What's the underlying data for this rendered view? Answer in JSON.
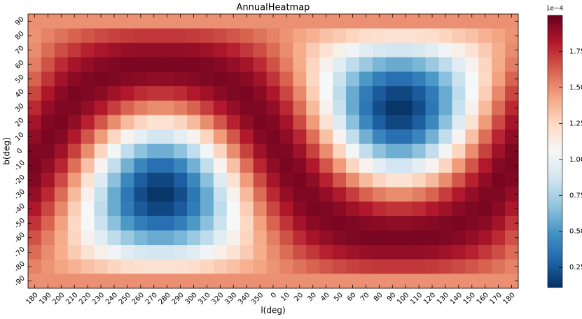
{
  "chart_data": {
    "type": "heatmap",
    "title": "AnnualHeatmap",
    "x_label": "l(deg)",
    "y_label": "b(deg)",
    "categories": [
      "180",
      "190",
      "200",
      "210",
      "220",
      "230",
      "240",
      "250",
      "260",
      "270",
      "280",
      "290",
      "300",
      "310",
      "320",
      "330",
      "340",
      "350",
      "0",
      "10",
      "20",
      "30",
      "40",
      "50",
      "60",
      "70",
      "80",
      "90",
      "100",
      "110",
      "120",
      "130",
      "140",
      "150",
      "160",
      "170",
      "180"
    ],
    "y_categories": [
      "90",
      "80",
      "70",
      "60",
      "50",
      "40",
      "30",
      "20",
      "10",
      "0",
      "-10",
      "-20",
      "-30",
      "-40",
      "-50",
      "-60",
      "-70",
      "-80",
      "-90"
    ],
    "values": [
      [
        1.49,
        1.49,
        1.49,
        1.49,
        1.49,
        1.49,
        1.49,
        1.49,
        1.49,
        1.49,
        1.49,
        1.49,
        1.49,
        1.49,
        1.49,
        1.49,
        1.49,
        1.49,
        1.49,
        1.49,
        1.49,
        1.49,
        1.49,
        1.49,
        1.49,
        1.49,
        1.49,
        1.49,
        1.49,
        1.49,
        1.49,
        1.49,
        1.49,
        1.49,
        1.49,
        1.49,
        1.49
      ],
      [
        1.48,
        1.53,
        1.57,
        1.61,
        1.65,
        1.68,
        1.7,
        1.72,
        1.73,
        1.73,
        1.73,
        1.73,
        1.72,
        1.7,
        1.68,
        1.65,
        1.61,
        1.57,
        1.53,
        1.48,
        1.43,
        1.39,
        1.34,
        1.3,
        1.26,
        1.23,
        1.21,
        1.2,
        1.2,
        1.21,
        1.23,
        1.26,
        1.3,
        1.34,
        1.39,
        1.43,
        1.48
      ],
      [
        1.5,
        1.59,
        1.67,
        1.73,
        1.79,
        1.83,
        1.86,
        1.88,
        1.89,
        1.89,
        1.89,
        1.89,
        1.88,
        1.86,
        1.83,
        1.79,
        1.73,
        1.67,
        1.59,
        1.5,
        1.4,
        1.3,
        1.2,
        1.11,
        1.02,
        0.95,
        0.9,
        0.88,
        0.88,
        0.9,
        0.95,
        1.02,
        1.11,
        1.2,
        1.3,
        1.4,
        1.5
      ],
      [
        1.54,
        1.66,
        1.76,
        1.84,
        1.89,
        1.92,
        1.94,
        1.95,
        1.95,
        1.95,
        1.95,
        1.95,
        1.95,
        1.94,
        1.92,
        1.89,
        1.84,
        1.76,
        1.66,
        1.54,
        1.41,
        1.26,
        1.1,
        0.95,
        0.81,
        0.7,
        0.62,
        0.58,
        0.58,
        0.62,
        0.7,
        0.81,
        0.95,
        1.1,
        1.26,
        1.41,
        1.54
      ],
      [
        1.61,
        1.74,
        1.85,
        1.91,
        1.94,
        1.95,
        1.94,
        1.92,
        1.91,
        1.9,
        1.9,
        1.91,
        1.92,
        1.94,
        1.95,
        1.94,
        1.91,
        1.85,
        1.74,
        1.61,
        1.44,
        1.25,
        1.05,
        0.85,
        0.66,
        0.51,
        0.4,
        0.34,
        0.34,
        0.4,
        0.51,
        0.66,
        0.85,
        1.05,
        1.25,
        1.44,
        1.61
      ],
      [
        1.69,
        1.82,
        1.91,
        1.95,
        1.94,
        1.91,
        1.86,
        1.81,
        1.76,
        1.74,
        1.74,
        1.76,
        1.81,
        1.86,
        1.91,
        1.94,
        1.95,
        1.91,
        1.82,
        1.69,
        1.51,
        1.29,
        1.05,
        0.81,
        0.58,
        0.39,
        0.26,
        0.19,
        0.19,
        0.26,
        0.39,
        0.58,
        0.81,
        1.05,
        1.29,
        1.51,
        1.69
      ],
      [
        1.77,
        1.89,
        1.94,
        1.94,
        1.89,
        1.81,
        1.71,
        1.61,
        1.54,
        1.5,
        1.5,
        1.54,
        1.61,
        1.71,
        1.81,
        1.89,
        1.94,
        1.94,
        1.89,
        1.77,
        1.59,
        1.36,
        1.1,
        0.84,
        0.58,
        0.37,
        0.21,
        0.13,
        0.13,
        0.21,
        0.37,
        0.58,
        0.84,
        1.1,
        1.36,
        1.59,
        1.77
      ],
      [
        1.84,
        1.93,
        1.95,
        1.9,
        1.79,
        1.65,
        1.5,
        1.36,
        1.26,
        1.2,
        1.2,
        1.26,
        1.36,
        1.5,
        1.65,
        1.79,
        1.9,
        1.95,
        1.93,
        1.84,
        1.68,
        1.46,
        1.2,
        0.93,
        0.66,
        0.44,
        0.27,
        0.19,
        0.19,
        0.27,
        0.44,
        0.66,
        0.93,
        1.2,
        1.46,
        1.68,
        1.84
      ],
      [
        1.9,
        1.95,
        1.92,
        1.81,
        1.65,
        1.46,
        1.26,
        1.09,
        0.96,
        0.88,
        0.88,
        0.96,
        1.09,
        1.26,
        1.46,
        1.65,
        1.81,
        1.92,
        1.95,
        1.9,
        1.78,
        1.58,
        1.34,
        1.08,
        0.82,
        0.6,
        0.43,
        0.34,
        0.34,
        0.43,
        0.6,
        0.82,
        1.08,
        1.34,
        1.58,
        1.78,
        1.9
      ],
      [
        1.94,
        1.94,
        1.86,
        1.7,
        1.5,
        1.26,
        1.03,
        0.82,
        0.67,
        0.59,
        0.59,
        0.67,
        0.82,
        1.03,
        1.26,
        1.5,
        1.7,
        1.86,
        1.94,
        1.94,
        1.86,
        1.7,
        1.5,
        1.26,
        1.03,
        0.82,
        0.67,
        0.59,
        0.59,
        0.67,
        0.82,
        1.03,
        1.26,
        1.5,
        1.7,
        1.86,
        1.94
      ],
      [
        1.95,
        1.9,
        1.78,
        1.58,
        1.34,
        1.08,
        0.82,
        0.6,
        0.43,
        0.34,
        0.34,
        0.43,
        0.6,
        0.82,
        1.08,
        1.34,
        1.58,
        1.78,
        1.9,
        1.95,
        1.92,
        1.81,
        1.65,
        1.46,
        1.26,
        1.09,
        0.96,
        0.88,
        0.88,
        0.96,
        1.09,
        1.26,
        1.46,
        1.65,
        1.81,
        1.92,
        1.95
      ],
      [
        1.93,
        1.84,
        1.68,
        1.46,
        1.2,
        0.93,
        0.66,
        0.44,
        0.27,
        0.19,
        0.19,
        0.27,
        0.44,
        0.66,
        0.93,
        1.2,
        1.46,
        1.68,
        1.84,
        1.93,
        1.95,
        1.9,
        1.79,
        1.65,
        1.5,
        1.36,
        1.26,
        1.2,
        1.2,
        1.26,
        1.36,
        1.5,
        1.65,
        1.79,
        1.9,
        1.95,
        1.93
      ],
      [
        1.89,
        1.77,
        1.59,
        1.36,
        1.1,
        0.84,
        0.58,
        0.37,
        0.21,
        0.13,
        0.13,
        0.21,
        0.37,
        0.58,
        0.84,
        1.1,
        1.36,
        1.59,
        1.77,
        1.89,
        1.94,
        1.94,
        1.89,
        1.81,
        1.71,
        1.61,
        1.54,
        1.5,
        1.5,
        1.54,
        1.61,
        1.71,
        1.81,
        1.89,
        1.94,
        1.94,
        1.89
      ],
      [
        1.82,
        1.69,
        1.51,
        1.29,
        1.05,
        0.81,
        0.58,
        0.39,
        0.26,
        0.19,
        0.19,
        0.26,
        0.39,
        0.58,
        0.81,
        1.05,
        1.29,
        1.51,
        1.69,
        1.82,
        1.91,
        1.95,
        1.94,
        1.91,
        1.86,
        1.81,
        1.76,
        1.74,
        1.74,
        1.76,
        1.81,
        1.86,
        1.91,
        1.94,
        1.95,
        1.91,
        1.82
      ],
      [
        1.74,
        1.61,
        1.44,
        1.25,
        1.05,
        0.85,
        0.66,
        0.51,
        0.4,
        0.34,
        0.34,
        0.4,
        0.51,
        0.66,
        0.85,
        1.05,
        1.25,
        1.44,
        1.61,
        1.74,
        1.85,
        1.91,
        1.94,
        1.95,
        1.94,
        1.92,
        1.91,
        1.9,
        1.9,
        1.91,
        1.92,
        1.94,
        1.95,
        1.94,
        1.91,
        1.85,
        1.74
      ],
      [
        1.66,
        1.54,
        1.41,
        1.26,
        1.1,
        0.95,
        0.81,
        0.7,
        0.62,
        0.58,
        0.58,
        0.62,
        0.7,
        0.81,
        0.95,
        1.1,
        1.26,
        1.41,
        1.54,
        1.66,
        1.76,
        1.84,
        1.89,
        1.92,
        1.94,
        1.95,
        1.95,
        1.95,
        1.95,
        1.95,
        1.95,
        1.94,
        1.92,
        1.89,
        1.84,
        1.76,
        1.66
      ],
      [
        1.59,
        1.5,
        1.4,
        1.3,
        1.2,
        1.11,
        1.02,
        0.95,
        0.9,
        0.88,
        0.88,
        0.9,
        0.95,
        1.02,
        1.11,
        1.2,
        1.3,
        1.4,
        1.5,
        1.59,
        1.67,
        1.73,
        1.79,
        1.83,
        1.86,
        1.88,
        1.89,
        1.89,
        1.89,
        1.89,
        1.88,
        1.86,
        1.83,
        1.79,
        1.73,
        1.67,
        1.59
      ],
      [
        1.53,
        1.48,
        1.43,
        1.39,
        1.34,
        1.3,
        1.26,
        1.23,
        1.21,
        1.2,
        1.2,
        1.21,
        1.23,
        1.26,
        1.3,
        1.34,
        1.39,
        1.43,
        1.48,
        1.53,
        1.57,
        1.61,
        1.65,
        1.68,
        1.7,
        1.72,
        1.73,
        1.73,
        1.73,
        1.73,
        1.72,
        1.7,
        1.68,
        1.65,
        1.61,
        1.57,
        1.53
      ],
      [
        1.49,
        1.49,
        1.49,
        1.49,
        1.49,
        1.49,
        1.49,
        1.49,
        1.49,
        1.49,
        1.49,
        1.49,
        1.49,
        1.49,
        1.49,
        1.49,
        1.49,
        1.49,
        1.49,
        1.49,
        1.49,
        1.49,
        1.49,
        1.49,
        1.49,
        1.49,
        1.49,
        1.49,
        1.49,
        1.49,
        1.49,
        1.49,
        1.49,
        1.49,
        1.49,
        1.49,
        1.49
      ]
    ],
    "colormap": [
      "#053061",
      "#2166ac",
      "#4393c3",
      "#92c5de",
      "#d1e5f0",
      "#f7f7f7",
      "#fddbc7",
      "#f4a582",
      "#d6604d",
      "#b2182b",
      "#67001f"
    ],
    "clim": [
      0.11,
      2.0
    ],
    "cticks": [
      0.25,
      {
        "value": 0.5,
        "label": "0.50"
      },
      0.75,
      {
        "value": 1,
        "label": "1.00"
      },
      1.25,
      {
        "value": 1.5,
        "label": "1.50"
      },
      1.75
    ],
    "colorbar_offset": "1e−4"
  }
}
